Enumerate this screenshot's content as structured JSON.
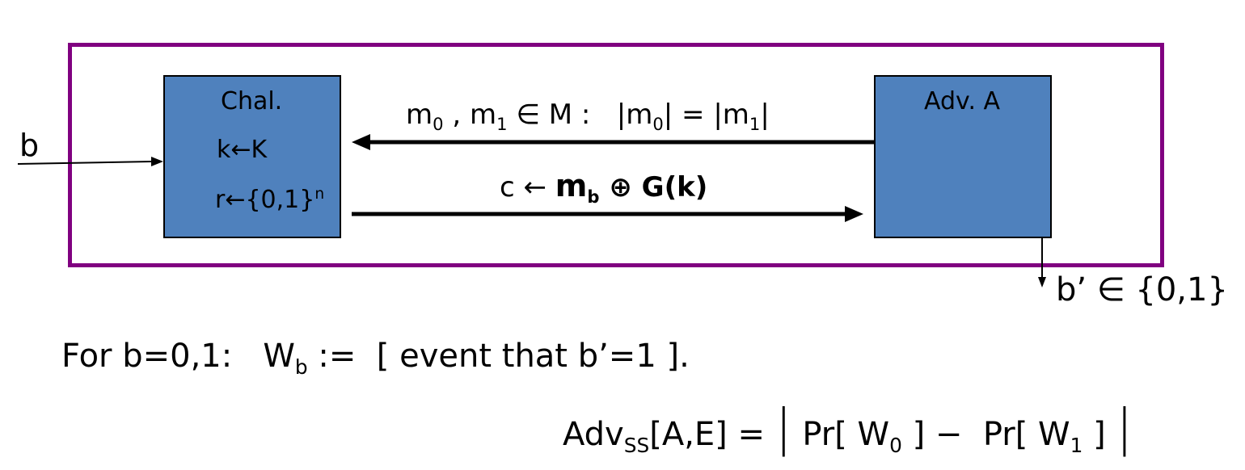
{
  "labels": {
    "b_input": "b",
    "chal_title": "Chal.",
    "chal_line1": "k←K",
    "chal_line2": "r←{0,1}",
    "chal_line2_sup": "n",
    "adv_title": "Adv. A",
    "msg_top": {
      "m": "m",
      "sub0": "0",
      "sep": " , m",
      "sub1": "1",
      "rest": " ∈ M :   |m",
      "sub0b": "0",
      "mid": "| = |m",
      "sub1b": "1",
      "end": "|"
    },
    "msg_bottom": {
      "c": "c ← ",
      "mb": "m",
      "mb_sub": "b",
      "xor": " ⊕ G(k)"
    },
    "output": "b’ ∈ {0,1}",
    "def": {
      "pre": "For b=0,1:   W",
      "sub": "b",
      "post": " :=  [ event that b’=1 ]."
    },
    "adv": {
      "name": "Adv",
      "sub": "SS",
      "args": "[A,E] = ",
      "bar": "|",
      "pr0": " Pr[ W",
      "s0": "0",
      "mid": " ] −  Pr[ W",
      "s1": "1",
      "end": " ] "
    }
  },
  "colors": {
    "frame": "#800080",
    "box": "#4f81bd"
  }
}
